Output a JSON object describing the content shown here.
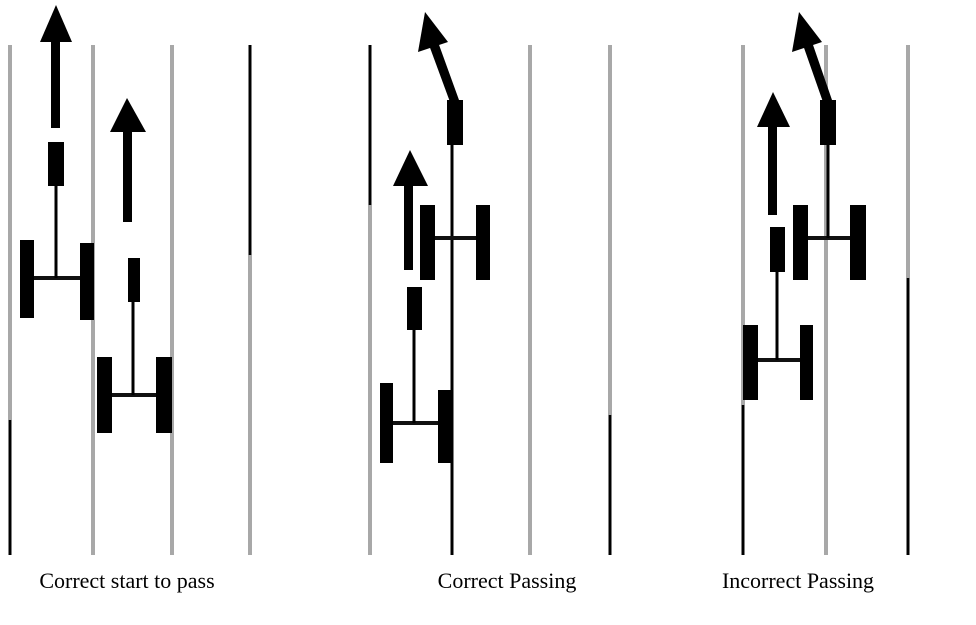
{
  "panels": [
    {
      "caption": "Correct start to pass"
    },
    {
      "caption": "Correct Passing"
    },
    {
      "caption": "Incorrect Passing"
    }
  ]
}
